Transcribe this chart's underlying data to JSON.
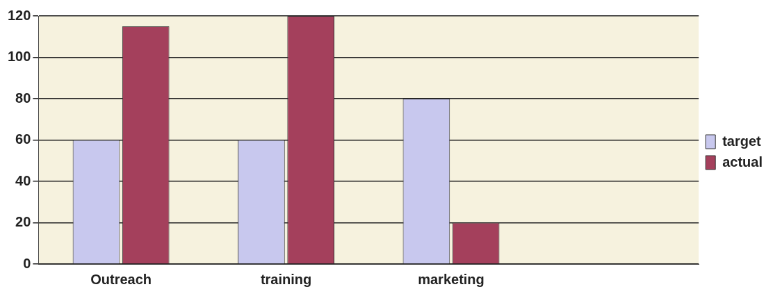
{
  "chart_data": {
    "type": "bar",
    "categories": [
      "Outreach",
      "training",
      "marketing",
      null
    ],
    "series": [
      {
        "name": "target",
        "color": "#c8c8ee",
        "values": [
          60,
          60,
          80,
          null
        ]
      },
      {
        "name": "actual",
        "color": "#a4405c",
        "values": [
          115,
          120,
          20,
          null
        ]
      }
    ],
    "ylim": [
      0,
      120
    ],
    "yticks": [
      0,
      20,
      40,
      60,
      80,
      100,
      120
    ],
    "grid": "y",
    "legend": "right"
  }
}
